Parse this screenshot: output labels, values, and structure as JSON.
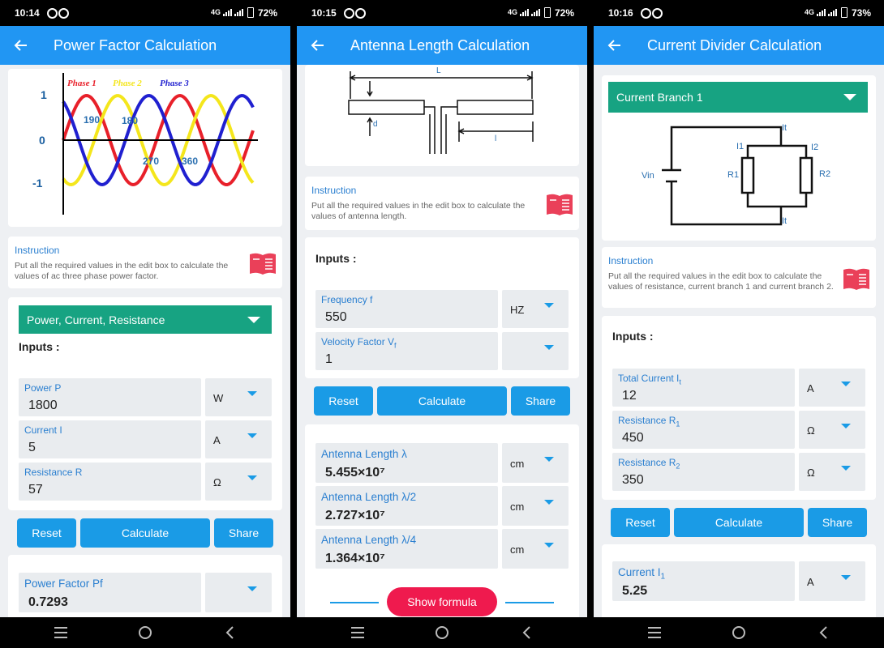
{
  "screens": [
    {
      "status": {
        "time": "10:14",
        "network": "4G",
        "battery": "72%"
      },
      "title": "Power Factor Calculation",
      "diagram": {
        "legend": [
          "Phase 1",
          "Phase 2",
          "Phase 3"
        ],
        "y_labels": [
          "1",
          "0",
          "-1"
        ],
        "angle_labels": [
          "190",
          "180",
          "270",
          "360"
        ]
      },
      "instruction": {
        "title": "Instruction",
        "text": "Put all the required values in the edit box to calculate the values of ac three phase power factor."
      },
      "dropdown": "Power, Current, Resistance",
      "inputs_label": "Inputs :",
      "inputs": [
        {
          "label": "Power P",
          "value": 1800,
          "unit": "W"
        },
        {
          "label": "Current I",
          "value": 5,
          "unit": "A"
        },
        {
          "label": "Resistance R",
          "value": 57,
          "unit": "Ω"
        }
      ],
      "buttons": [
        "Reset",
        "Calculate",
        "Share"
      ],
      "outputs": [
        {
          "label": "Power Factor Pf",
          "value": 0.7293
        }
      ]
    },
    {
      "status": {
        "time": "10:15",
        "network": "4G",
        "battery": "72%"
      },
      "title": "Antenna Length Calculation",
      "diagram": {
        "labels": [
          "L",
          "d",
          "l"
        ]
      },
      "instruction": {
        "title": "Instruction",
        "text": "Put all the required values in the edit box to calculate the values of antenna length."
      },
      "inputs_label": "Inputs :",
      "inputs": [
        {
          "label": "Frequency f",
          "value": 550,
          "unit": "HZ"
        },
        {
          "label": "Velocity Factor V",
          "sub": "f",
          "value": 1
        }
      ],
      "buttons": [
        "Reset",
        "Calculate",
        "Share"
      ],
      "outputs": [
        {
          "label": "Antenna Length λ",
          "value": "5.455×10⁷",
          "unit": "cm"
        },
        {
          "label": "Antenna Length λ/2",
          "value": "2.727×10⁷",
          "unit": "cm"
        },
        {
          "label": "Antenna Length λ/4",
          "value": "1.364×10⁷",
          "unit": "cm"
        }
      ],
      "show_formula": "Show formula"
    },
    {
      "status": {
        "time": "10:16",
        "network": "4G",
        "battery": "73%"
      },
      "title": "Current Divider Calculation",
      "dropdown": "Current Branch 1",
      "diagram": {
        "labels": [
          "Vin",
          "R1",
          "R2",
          "I1",
          "I2",
          "It",
          "It"
        ]
      },
      "instruction": {
        "title": "Instruction",
        "text": "Put all the required values in the edit box to calculate the values of resistance, current branch 1 and current branch 2."
      },
      "inputs_label": "Inputs :",
      "inputs": [
        {
          "label": "Total Current I",
          "sub": "t",
          "value": 12,
          "unit": "A"
        },
        {
          "label": "Resistance R",
          "sub": "1",
          "value": 450,
          "unit": "Ω"
        },
        {
          "label": "Resistance R",
          "sub": "2",
          "value": 350,
          "unit": "Ω"
        }
      ],
      "buttons": [
        "Reset",
        "Calculate",
        "Share"
      ],
      "outputs": [
        {
          "label": "Current I",
          "sub": "1",
          "value": 5.25,
          "unit": "A"
        }
      ]
    }
  ]
}
